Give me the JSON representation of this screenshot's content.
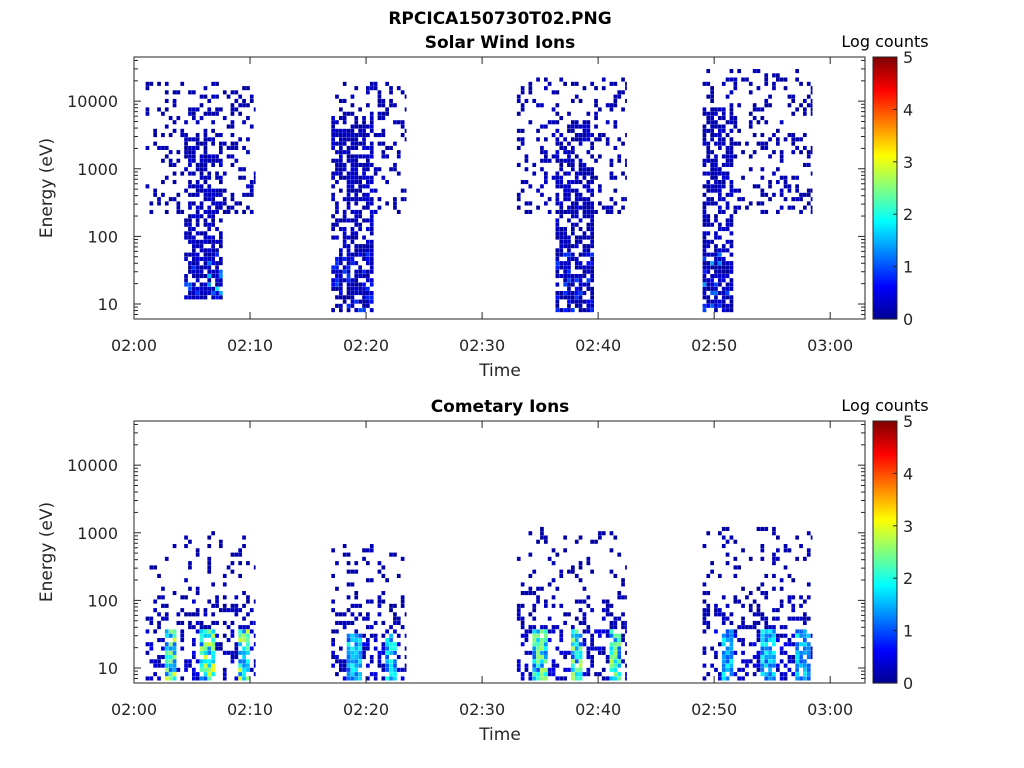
{
  "figure_title": "RPCICA150730T02.PNG",
  "colors": {
    "colormap": [
      "#00008f",
      "#0000ff",
      "#0080ff",
      "#00ffff",
      "#80ff80",
      "#ffff00",
      "#ff8000",
      "#ff0000",
      "#800000"
    ],
    "axis": "#262626"
  },
  "chart_data": [
    {
      "type": "heatmap",
      "title": "Solar Wind Ions",
      "xlabel": "Time",
      "ylabel": "Energy (eV)",
      "x_ticks": [
        "02:00",
        "02:10",
        "02:20",
        "02:30",
        "02:40",
        "02:50",
        "03:00"
      ],
      "y_ticks": [
        "10",
        "100",
        "1000",
        "10000"
      ],
      "y_scale": "log",
      "ylim": [
        6,
        45000
      ],
      "xlim_minutes": [
        0,
        63
      ],
      "colorbar": {
        "label": "Log counts",
        "range": [
          0,
          5
        ],
        "ticks": [
          "0",
          "1",
          "2",
          "3",
          "4",
          "5"
        ]
      },
      "bursts": [
        {
          "start_min": 1.0,
          "end_min": 10.5,
          "core_start_min": 4.2,
          "core_end_min": 7.5,
          "core_min_energy": 12,
          "core_max_energy": 3000,
          "max_energy": 20000,
          "peak_log_counts": 2.0
        },
        {
          "start_min": 17.0,
          "end_min": 23.5,
          "core_start_min": 17.0,
          "core_end_min": 20.5,
          "core_min_energy": 8,
          "core_max_energy": 6000,
          "max_energy": 18000,
          "peak_log_counts": 1.0
        },
        {
          "start_min": 33.0,
          "end_min": 42.5,
          "core_start_min": 36.0,
          "core_end_min": 39.5,
          "core_min_energy": 7,
          "core_max_energy": 5000,
          "max_energy": 22000,
          "peak_log_counts": 1.0
        },
        {
          "start_min": 49.0,
          "end_min": 58.5,
          "core_start_min": 49.0,
          "core_end_min": 51.5,
          "core_min_energy": 7,
          "core_max_energy": 8000,
          "max_energy": 30000,
          "peak_log_counts": 1.5
        }
      ]
    },
    {
      "type": "heatmap",
      "title": "Cometary Ions",
      "xlabel": "Time",
      "ylabel": "Energy (eV)",
      "x_ticks": [
        "02:00",
        "02:10",
        "02:20",
        "02:30",
        "02:40",
        "02:50",
        "03:00"
      ],
      "y_ticks": [
        "10",
        "100",
        "1000",
        "10000"
      ],
      "y_scale": "log",
      "ylim": [
        6,
        45000
      ],
      "xlim_minutes": [
        0,
        63
      ],
      "colorbar": {
        "label": "Log counts",
        "range": [
          0,
          5
        ],
        "ticks": [
          "0",
          "1",
          "2",
          "3",
          "4",
          "5"
        ]
      },
      "bursts": [
        {
          "start_min": 1.0,
          "end_min": 10.5,
          "hot_spots_min": [
            3.0,
            6.2,
            9.3
          ],
          "core_energy": [
            10,
            40
          ],
          "max_energy": 1000,
          "peak_log_counts": 3.0
        },
        {
          "start_min": 17.0,
          "end_min": 23.5,
          "hot_spots_min": [
            18.8,
            22.0
          ],
          "core_energy": [
            10,
            30
          ],
          "max_energy": 700,
          "peak_log_counts": 2.0
        },
        {
          "start_min": 33.0,
          "end_min": 42.5,
          "hot_spots_min": [
            34.8,
            38.0,
            41.3
          ],
          "core_energy": [
            10,
            35
          ],
          "max_energy": 1200,
          "peak_log_counts": 2.8
        },
        {
          "start_min": 49.0,
          "end_min": 58.5,
          "hot_spots_min": [
            51.0,
            54.5,
            57.5
          ],
          "core_energy": [
            10,
            35
          ],
          "max_energy": 1200,
          "peak_log_counts": 2.0
        }
      ]
    }
  ]
}
